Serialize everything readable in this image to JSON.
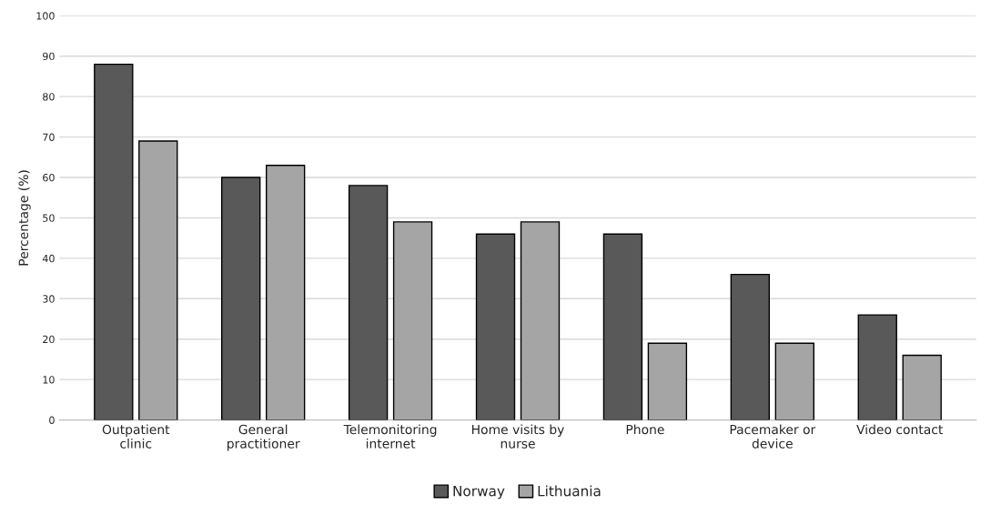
{
  "chart_data": {
    "type": "bar",
    "ylabel": "Percentage (%)",
    "categories": [
      "Outpatient\nclinic",
      "General\npractitioner",
      "Telemonitoring\ninternet",
      "Home visits by\nnurse",
      "Phone",
      "Pacemaker or\ndevice",
      "Video contact"
    ],
    "series": [
      {
        "name": "Norway",
        "color": "#595959",
        "values": [
          88,
          60,
          58,
          46,
          46,
          36,
          26
        ]
      },
      {
        "name": "Lithuania",
        "color": "#a5a5a5",
        "values": [
          69,
          63,
          49,
          49,
          19,
          19,
          16
        ]
      }
    ],
    "ylim": [
      0,
      100
    ],
    "yticks": [
      0,
      10,
      20,
      30,
      40,
      50,
      60,
      70,
      80,
      90,
      100
    ],
    "grid": "y",
    "legend": "bottom"
  }
}
